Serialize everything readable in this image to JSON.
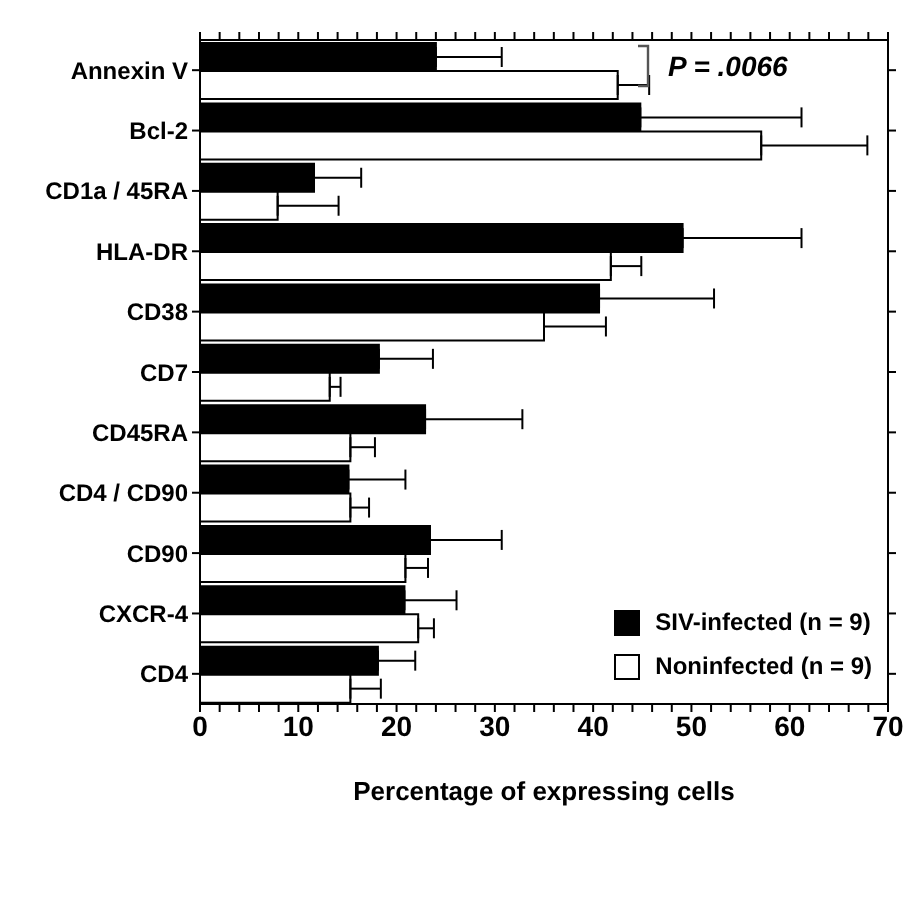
{
  "chart_data": {
    "type": "bar",
    "orientation": "horizontal",
    "xlabel": "Percentage of expressing cells",
    "categories": [
      "Annexin V",
      "Bcl-2",
      "CD1a / 45RA",
      "HLA-DR",
      "CD38",
      "CD7",
      "CD45RA",
      "CD4 / CD90",
      "CD90",
      "CXCR-4",
      "CD4"
    ],
    "series": [
      {
        "name": "SIV-infected (n = 9)",
        "color": "#000000",
        "values": [
          24,
          44.8,
          11.6,
          49.1,
          40.6,
          18.2,
          22.9,
          15.1,
          23.4,
          20.8,
          18.1
        ],
        "errors": [
          [
            24,
            30.7
          ],
          [
            44.8,
            61.2
          ],
          [
            11.6,
            16.4
          ],
          [
            49.1,
            61.2
          ],
          [
            40.6,
            52.3
          ],
          [
            18.2,
            23.7
          ],
          [
            22.9,
            32.8
          ],
          [
            15.1,
            20.9
          ],
          [
            23.4,
            30.7
          ],
          [
            20.8,
            26.1
          ],
          [
            18.1,
            21.9
          ]
        ]
      },
      {
        "name": "Noninfected (n = 9)",
        "color": "#ffffff",
        "values": [
          42.5,
          57.1,
          7.9,
          41.8,
          35,
          13.2,
          15.3,
          15.3,
          20.9,
          22.2,
          15.3
        ],
        "errors": [
          [
            42.5,
            45.7
          ],
          [
            57.1,
            67.9
          ],
          [
            7.9,
            14.1
          ],
          [
            41.8,
            44.9
          ],
          [
            35,
            41.3
          ],
          [
            13.2,
            14.3
          ],
          [
            15.3,
            17.8
          ],
          [
            15.3,
            17.2
          ],
          [
            20.9,
            23.2
          ],
          [
            22.2,
            23.8
          ],
          [
            15.3,
            18.4
          ]
        ]
      }
    ],
    "xlim": [
      0,
      70
    ],
    "xticks": [
      0,
      {
        "value": 2,
        "label": null
      },
      {
        "value": 4,
        "label": null
      },
      {
        "value": 6,
        "label": null
      },
      {
        "value": 8,
        "label": null
      },
      10,
      {
        "value": 12,
        "label": null
      },
      {
        "value": 14,
        "label": null
      },
      {
        "value": 16,
        "label": null
      },
      {
        "value": 18,
        "label": null
      },
      20,
      {
        "value": 22,
        "label": null
      },
      {
        "value": 24,
        "label": null
      },
      {
        "value": 26,
        "label": null
      },
      {
        "value": 28,
        "label": null
      },
      30,
      {
        "value": 32,
        "label": null
      },
      {
        "value": 34,
        "label": null
      },
      {
        "value": 36,
        "label": null
      },
      {
        "value": 38,
        "label": null
      },
      40,
      {
        "value": 42,
        "label": null
      },
      {
        "value": 44,
        "label": null
      },
      {
        "value": 46,
        "label": null
      },
      {
        "value": 48,
        "label": null
      },
      50,
      {
        "value": 52,
        "label": null
      },
      {
        "value": 54,
        "label": null
      },
      {
        "value": 56,
        "label": null
      },
      {
        "value": 58,
        "label": null
      },
      60,
      {
        "value": 62,
        "label": null
      },
      {
        "value": 64,
        "label": null
      },
      {
        "value": 66,
        "label": null
      },
      {
        "value": 68,
        "label": null
      },
      70
    ],
    "annotations": [
      "P = .0066"
    ],
    "legend": "bottom right"
  }
}
